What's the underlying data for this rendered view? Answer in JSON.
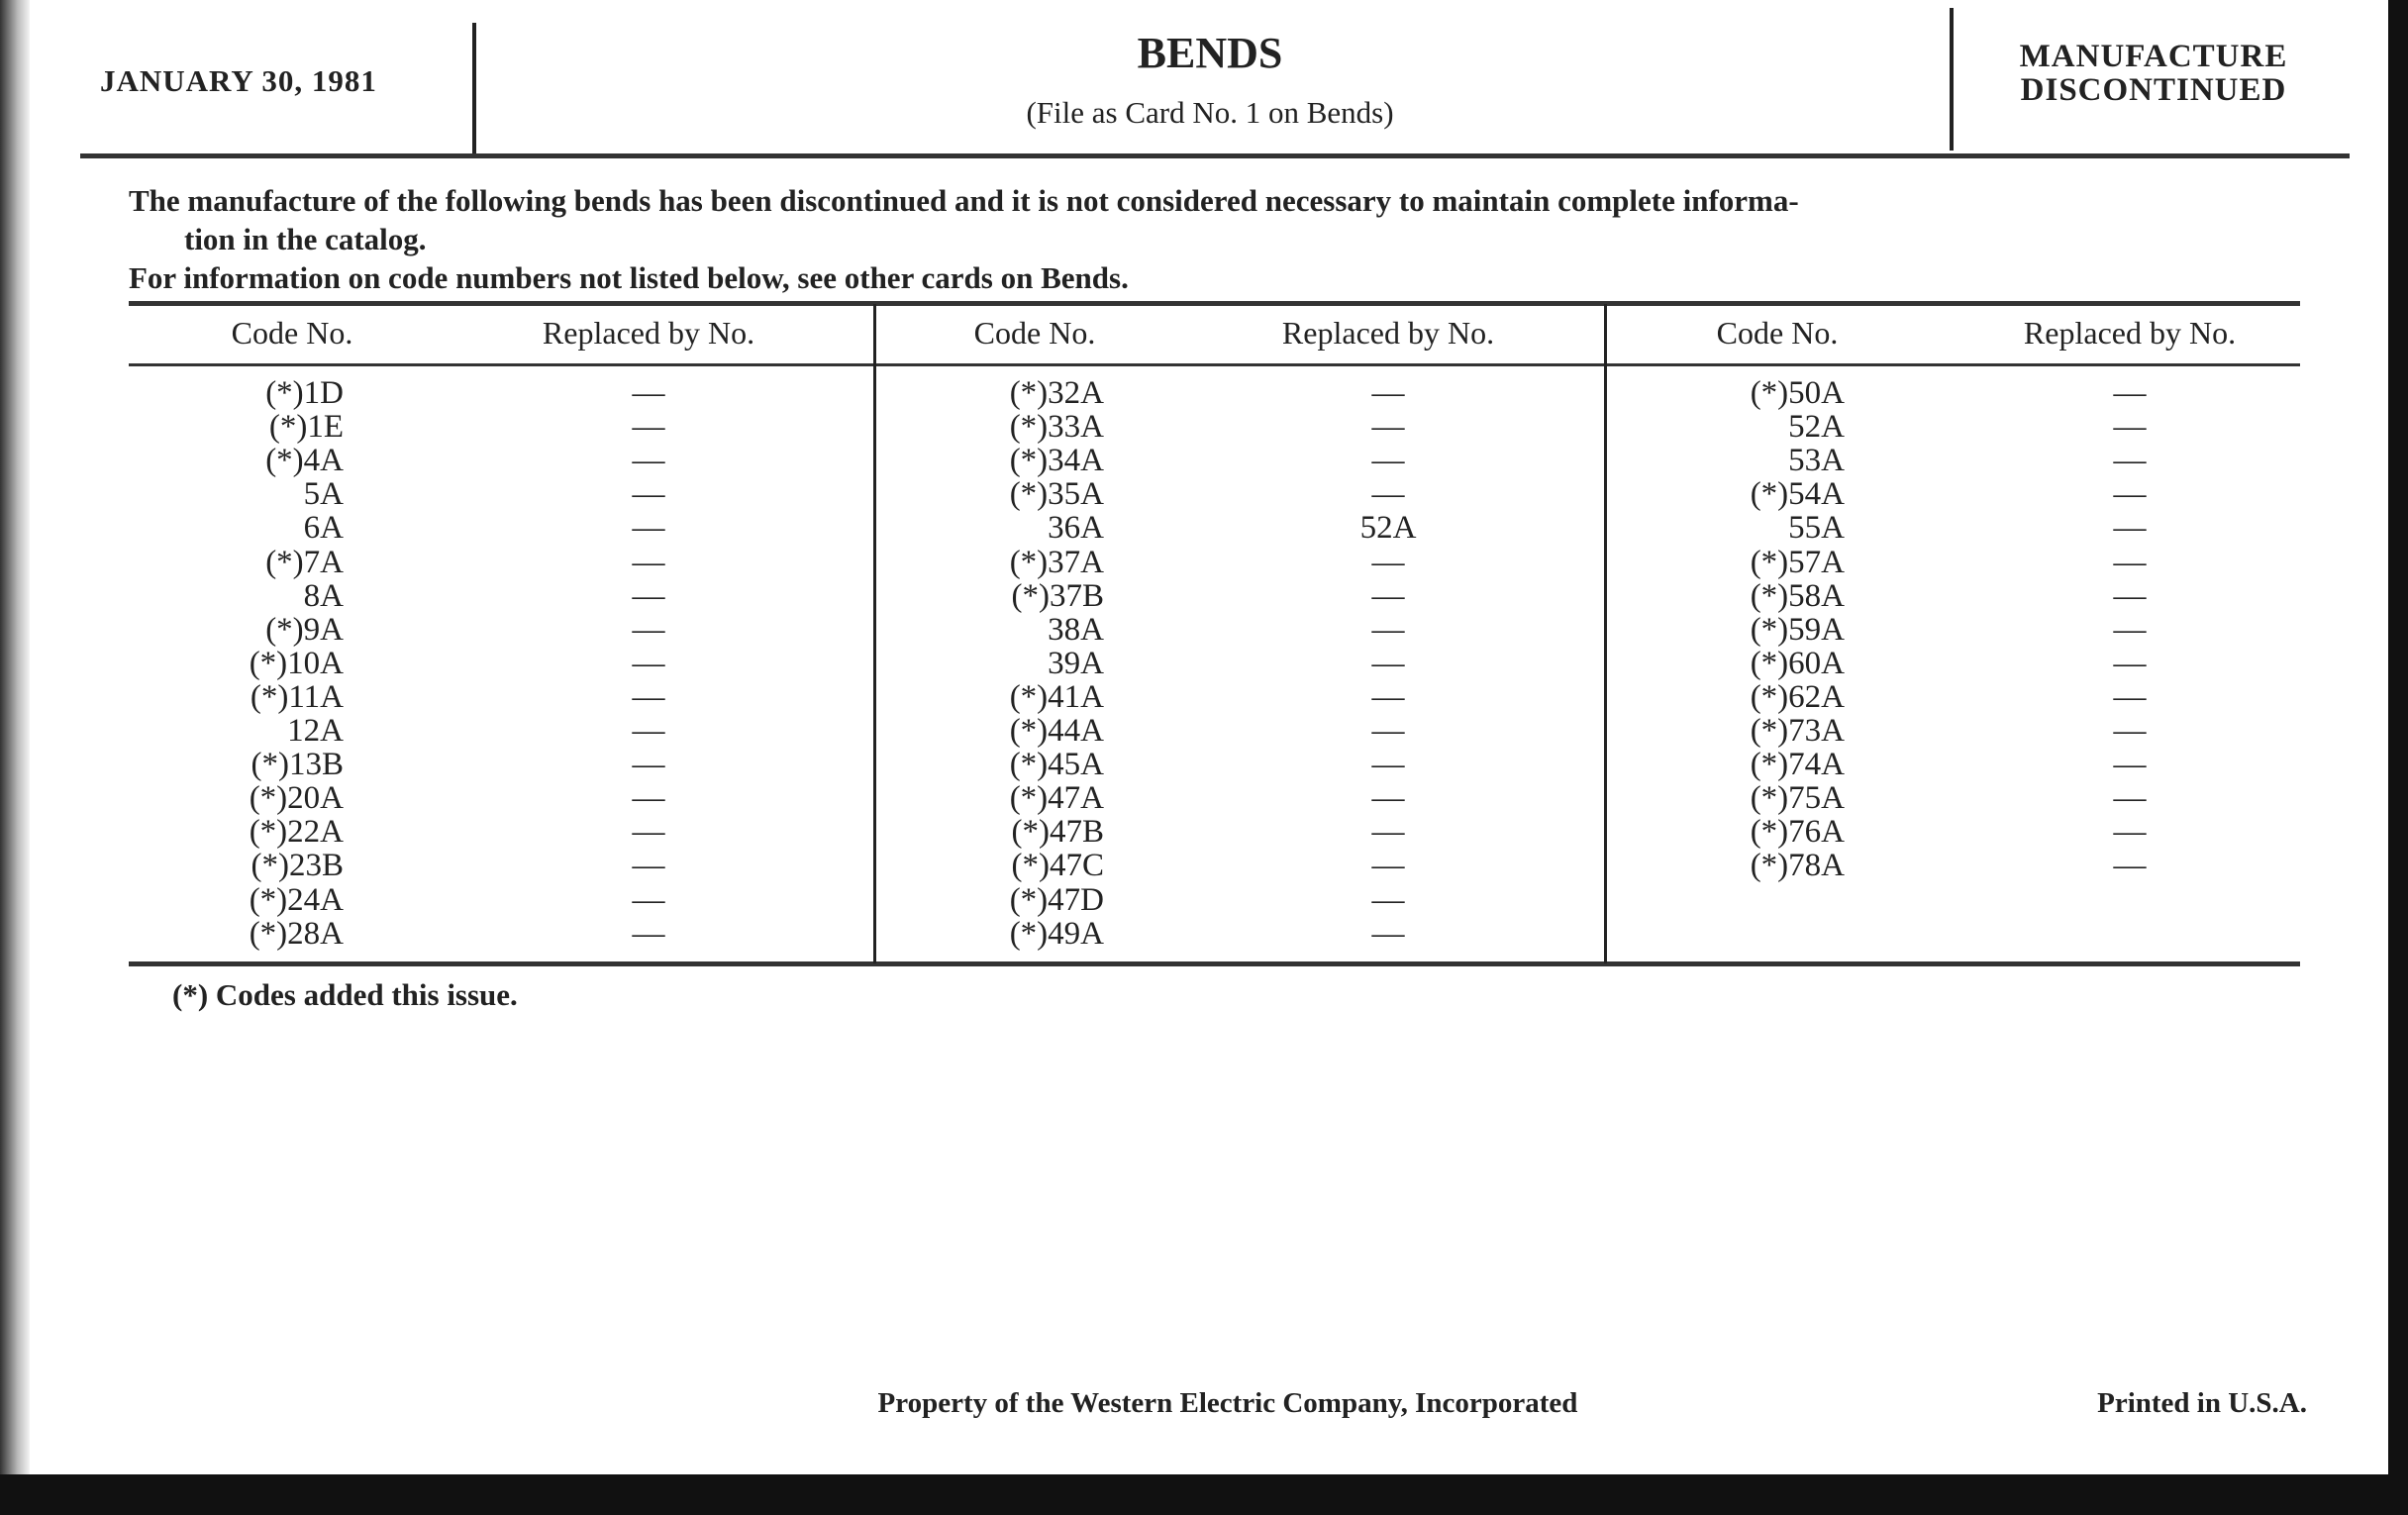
{
  "header": {
    "date": "JANUARY 30, 1981",
    "title": "BENDS",
    "subtitle": "(File as Card No. 1 on Bends)",
    "status_line1": "MANUFACTURE",
    "status_line2": "DISCONTINUED"
  },
  "intro": {
    "line1": "The manufacture of the following bends has been discontinued and it is not considered necessary to maintain complete informa-",
    "line2": "tion in the catalog.",
    "line3": "For information on code numbers not listed below, see other cards on Bends."
  },
  "table": {
    "headers": {
      "code": "Code No.",
      "replaced": "Replaced by No."
    },
    "columns": [
      [
        {
          "code": "(*)1D",
          "replaced": "—"
        },
        {
          "code": "(*)1E",
          "replaced": "—"
        },
        {
          "code": "(*)4A",
          "replaced": "—"
        },
        {
          "code": "5A",
          "replaced": "—"
        },
        {
          "code": "6A",
          "replaced": "—"
        },
        {
          "code": "(*)7A",
          "replaced": "—"
        },
        {
          "code": "8A",
          "replaced": "—"
        },
        {
          "code": "(*)9A",
          "replaced": "—"
        },
        {
          "code": "(*)10A",
          "replaced": "—"
        },
        {
          "code": "(*)11A",
          "replaced": "—"
        },
        {
          "code": "12A",
          "replaced": "—"
        },
        {
          "code": "(*)13B",
          "replaced": "—"
        },
        {
          "code": "(*)20A",
          "replaced": "—"
        },
        {
          "code": "(*)22A",
          "replaced": "—"
        },
        {
          "code": "(*)23B",
          "replaced": "—"
        },
        {
          "code": "(*)24A",
          "replaced": "—"
        },
        {
          "code": "(*)28A",
          "replaced": "—"
        }
      ],
      [
        {
          "code": "(*)32A",
          "replaced": "—"
        },
        {
          "code": "(*)33A",
          "replaced": "—"
        },
        {
          "code": "(*)34A",
          "replaced": "—"
        },
        {
          "code": "(*)35A",
          "replaced": "—"
        },
        {
          "code": "36A",
          "replaced": "52A"
        },
        {
          "code": "(*)37A",
          "replaced": "—"
        },
        {
          "code": "(*)37B",
          "replaced": "—"
        },
        {
          "code": "38A",
          "replaced": "—"
        },
        {
          "code": "39A",
          "replaced": "—"
        },
        {
          "code": "(*)41A",
          "replaced": "—"
        },
        {
          "code": "(*)44A",
          "replaced": "—"
        },
        {
          "code": "(*)45A",
          "replaced": "—"
        },
        {
          "code": "(*)47A",
          "replaced": "—"
        },
        {
          "code": "(*)47B",
          "replaced": "—"
        },
        {
          "code": "(*)47C",
          "replaced": "—"
        },
        {
          "code": "(*)47D",
          "replaced": "—"
        },
        {
          "code": "(*)49A",
          "replaced": "—"
        }
      ],
      [
        {
          "code": "(*)50A",
          "replaced": "—"
        },
        {
          "code": "52A",
          "replaced": "—"
        },
        {
          "code": "53A",
          "replaced": "—"
        },
        {
          "code": "(*)54A",
          "replaced": "—"
        },
        {
          "code": "55A",
          "replaced": "—"
        },
        {
          "code": "(*)57A",
          "replaced": "—"
        },
        {
          "code": "(*)58A",
          "replaced": "—"
        },
        {
          "code": "(*)59A",
          "replaced": "—"
        },
        {
          "code": "(*)60A",
          "replaced": "—"
        },
        {
          "code": "(*)62A",
          "replaced": "—"
        },
        {
          "code": "(*)73A",
          "replaced": "—"
        },
        {
          "code": "(*)74A",
          "replaced": "—"
        },
        {
          "code": "(*)75A",
          "replaced": "—"
        },
        {
          "code": "(*)76A",
          "replaced": "—"
        },
        {
          "code": "(*)78A",
          "replaced": "—"
        }
      ]
    ]
  },
  "footnote": "(*)  Codes added this issue.",
  "footer": {
    "property": "Property of the Western Electric Company, Incorporated",
    "printed": "Printed in U.S.A."
  }
}
